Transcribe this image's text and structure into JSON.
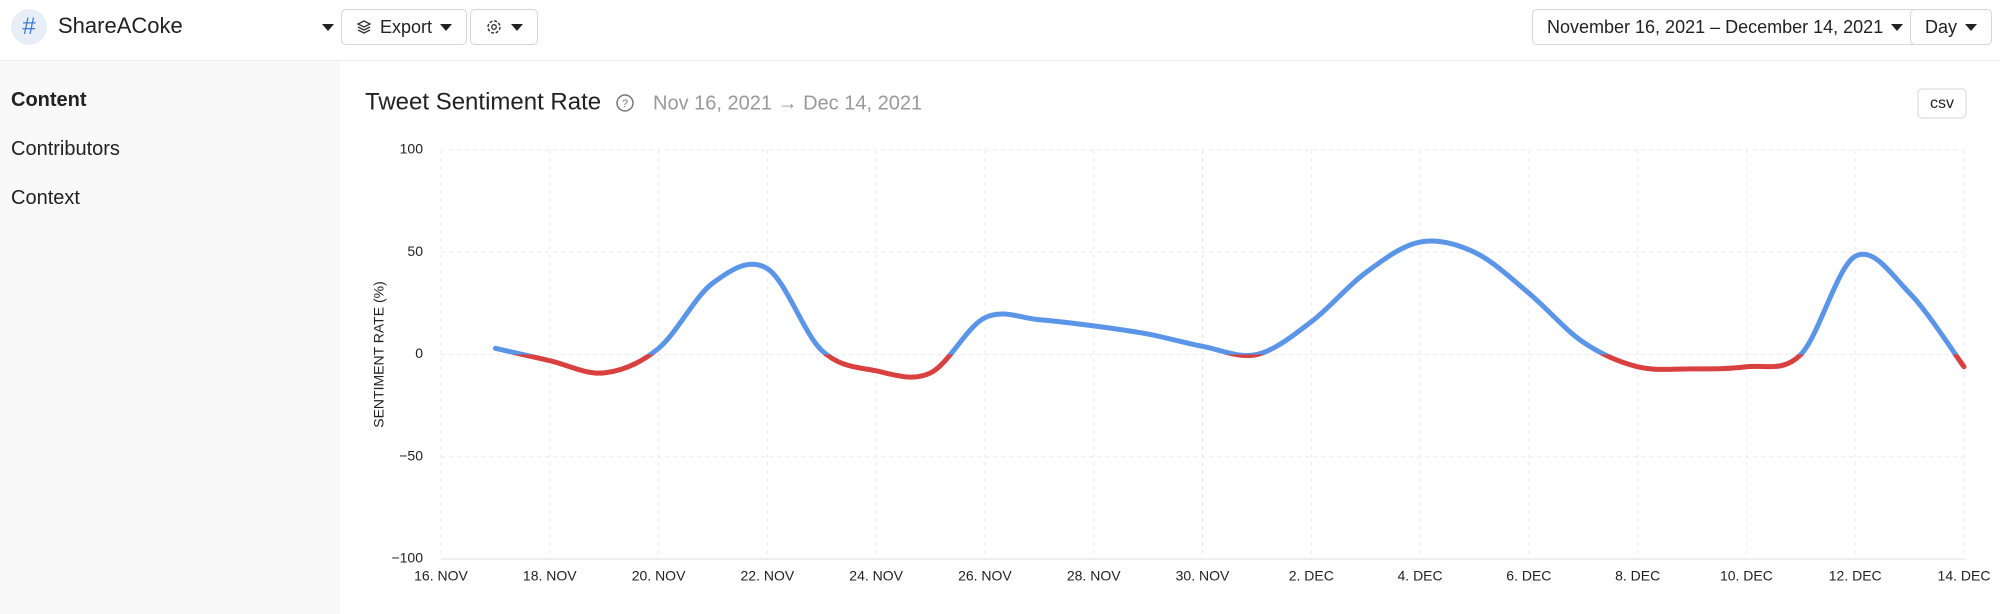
{
  "header": {
    "title": "ShareACoke",
    "export": "Export",
    "date_range": "November 16, 2021 – December 14, 2021",
    "granularity": "Day"
  },
  "sidebar": {
    "items": [
      "Content",
      "Contributors",
      "Context"
    ]
  },
  "chart_data": {
    "type": "line",
    "title": "Tweet Sentiment Rate",
    "subtitle": "Nov 16, 2021 → Dec 14, 2021",
    "csv": "csv",
    "y_label": "SENTIMENT RATE (%)",
    "x": [
      "11-17",
      "11-18",
      "11-19",
      "11-20",
      "11-21",
      "11-22",
      "11-23",
      "11-24",
      "11-25",
      "11-26",
      "11-27",
      "11-28",
      "11-29",
      "11-30",
      "12-01",
      "12-02",
      "12-03",
      "12-04",
      "12-05",
      "12-06",
      "12-07",
      "12-08",
      "12-09",
      "12-10",
      "12-11",
      "12-12",
      "12-13",
      "12-14"
    ],
    "values": [
      3,
      -3,
      -9,
      3,
      35,
      42,
      2,
      -8,
      -9,
      18,
      17,
      14,
      10,
      4,
      0,
      16,
      40,
      55,
      50,
      30,
      6,
      -6,
      -7,
      -6,
      0,
      48,
      30,
      -6
    ],
    "color": "#5b95e8",
    "negative_color": "#d94040",
    "xlim": [
      "11-16",
      "12-14"
    ],
    "xticks": [
      {
        "value": "11-16",
        "label": "16. NOV"
      },
      {
        "value": "11-18",
        "label": "18. NOV"
      },
      {
        "value": "11-20",
        "label": "20. NOV"
      },
      {
        "value": "11-22",
        "label": "22. NOV"
      },
      {
        "value": "11-24",
        "label": "24. NOV"
      },
      {
        "value": "11-26",
        "label": "26. NOV"
      },
      {
        "value": "11-28",
        "label": "28. NOV"
      },
      {
        "value": "11-30",
        "label": "30. NOV"
      },
      {
        "value": "12-02",
        "label": "2. DEC"
      },
      {
        "value": "12-04",
        "label": "4. DEC"
      },
      {
        "value": "12-06",
        "label": "6. DEC"
      },
      {
        "value": "12-08",
        "label": "8. DEC"
      },
      {
        "value": "12-10",
        "label": "10. DEC"
      },
      {
        "value": "12-12",
        "label": "12. DEC"
      },
      {
        "value": "12-14",
        "label": "14. DEC"
      }
    ],
    "ylim": [
      -100,
      100
    ],
    "yticks": [
      100,
      50,
      0,
      {
        "value": -50,
        "label": "−50"
      },
      {
        "value": -100,
        "label": "−100"
      }
    ],
    "grid": true
  }
}
